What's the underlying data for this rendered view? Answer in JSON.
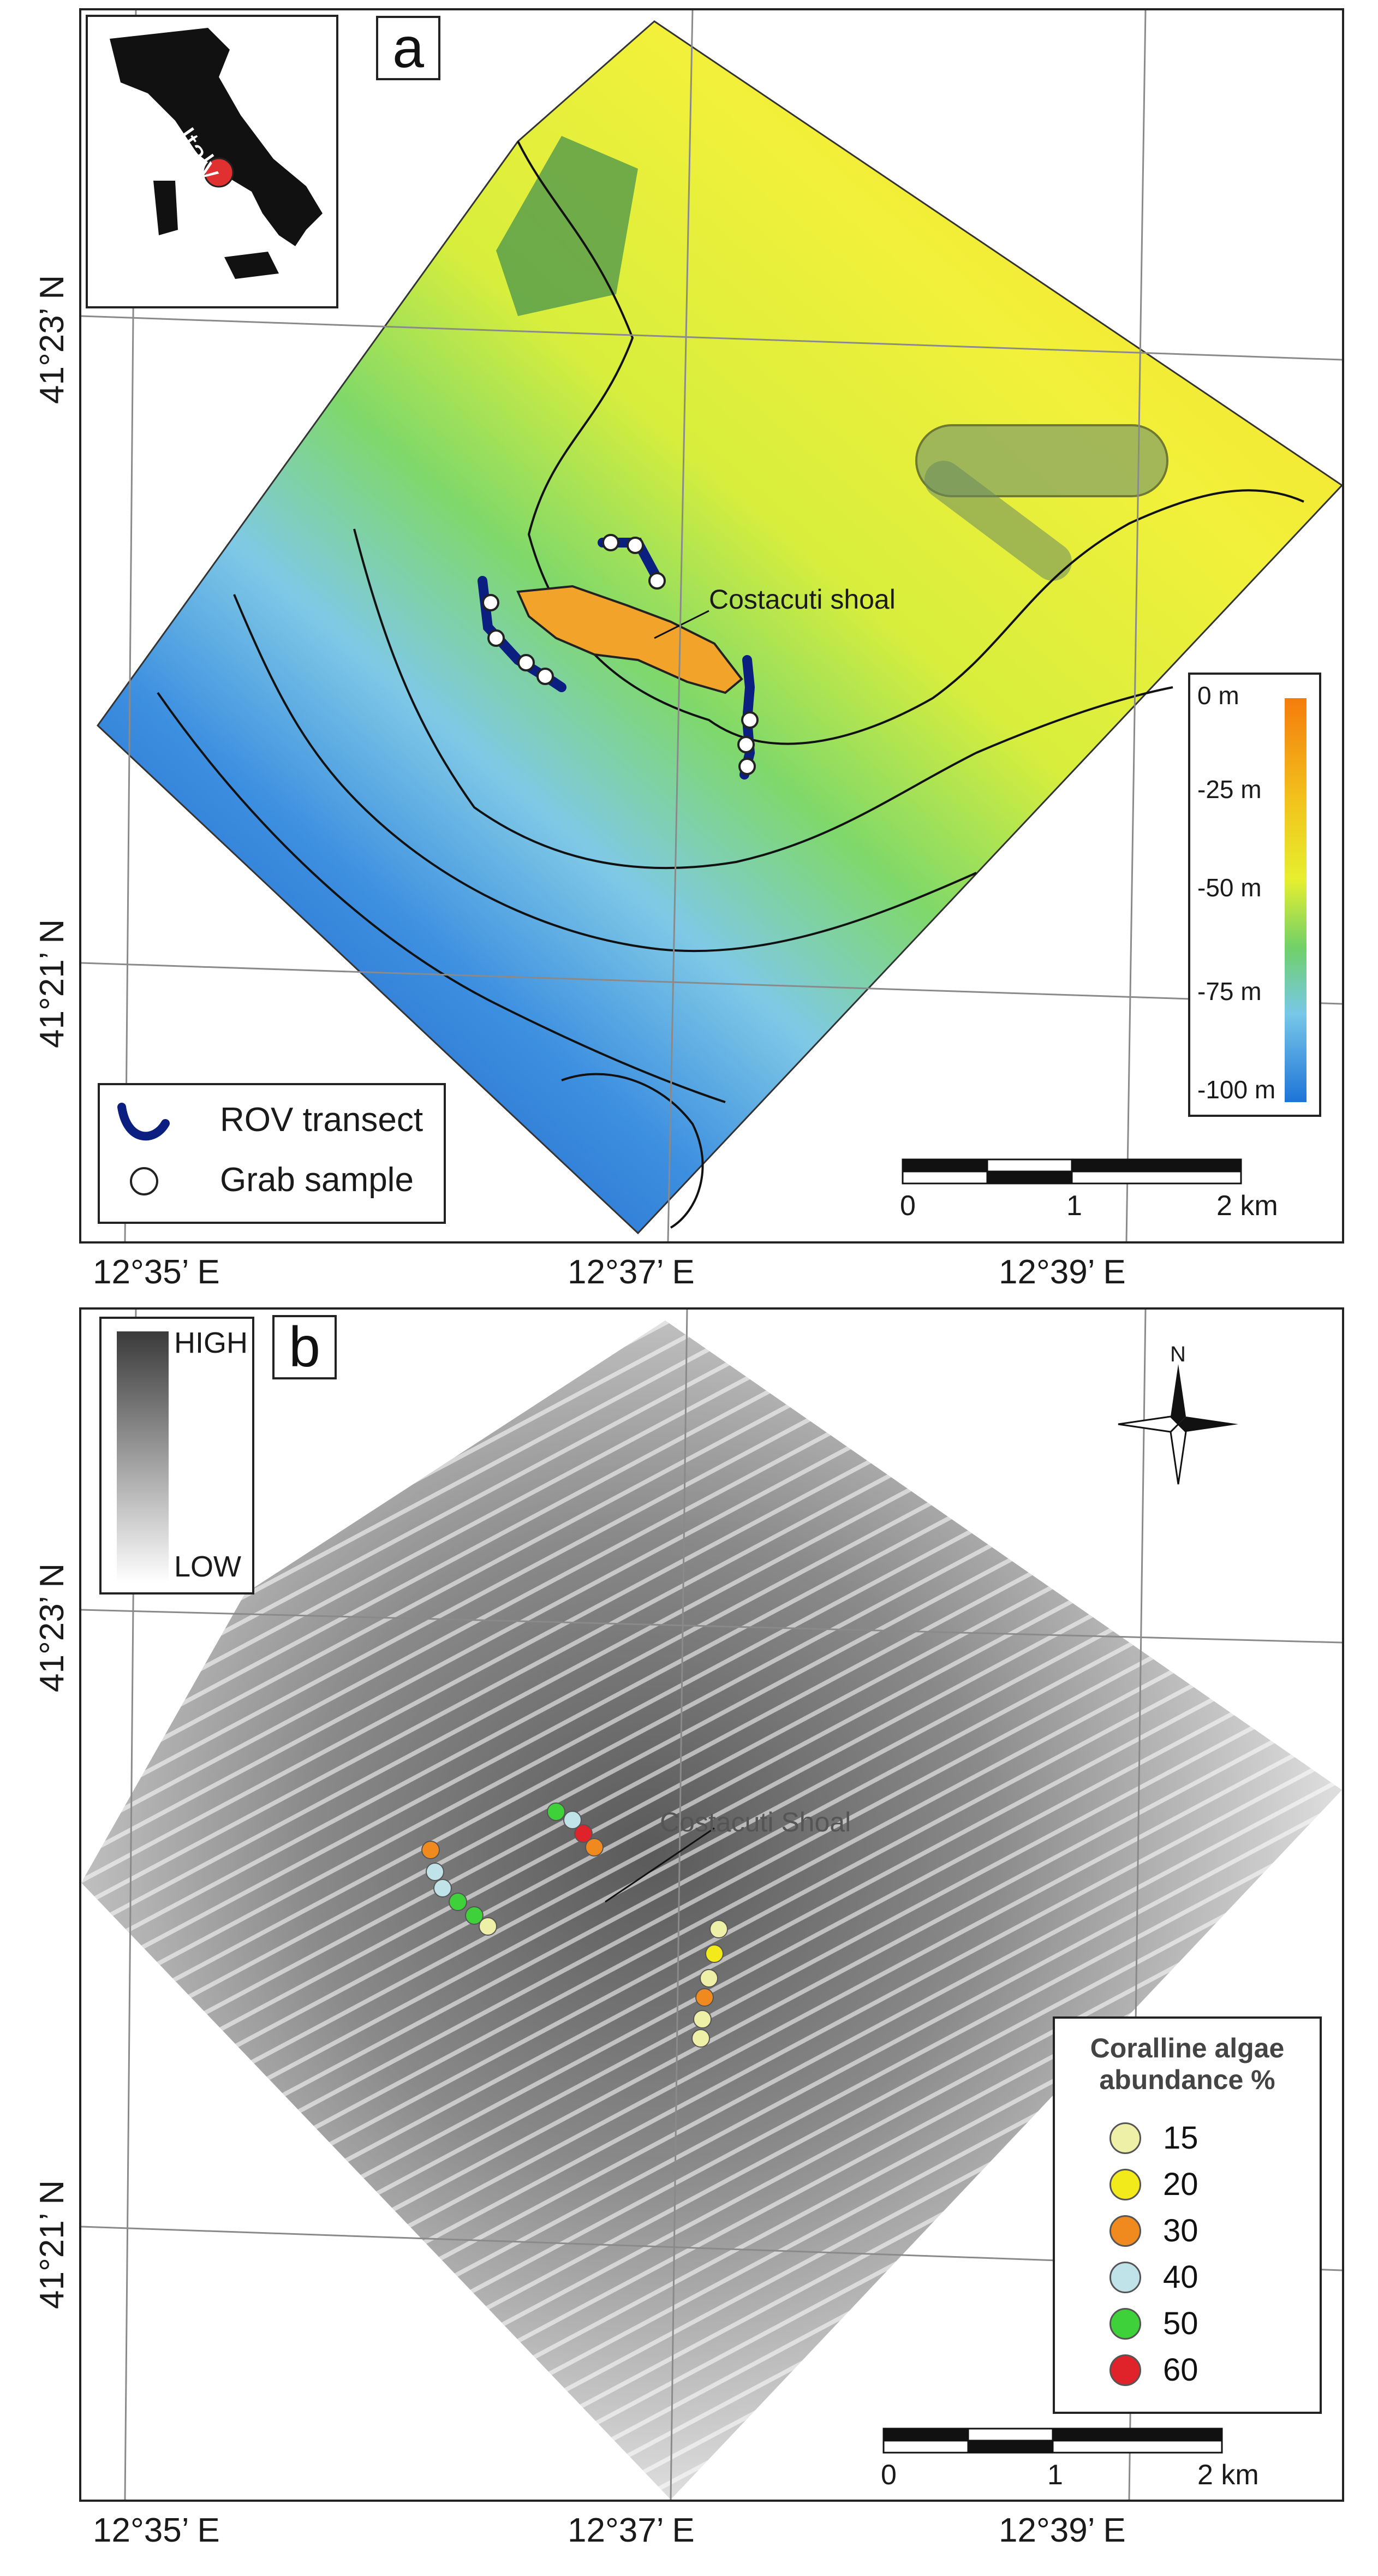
{
  "panel_a": {
    "label": "a",
    "inset_country": "Italy",
    "shoal_label": "Costacuti shoal",
    "legend": {
      "rov": "ROV transect",
      "grab": "Grab sample"
    },
    "depth_scale": {
      "ticks": [
        "0 m",
        "-25 m",
        "-50 m",
        "-75 m",
        "-100 m"
      ],
      "colors": [
        "#f47c0c",
        "#f2c21c",
        "#e6ef2f",
        "#6fd06a",
        "#78c8e8",
        "#1e74d8"
      ]
    },
    "scalebar": {
      "ticks": [
        "0",
        "1",
        "2 km"
      ]
    },
    "lon_labels": [
      "12°35’ E",
      "12°37’ E",
      "12°39’ E"
    ],
    "lat_labels": [
      "41°23’ N",
      "41°21’ N"
    ]
  },
  "panel_b": {
    "label": "b",
    "backscatter": {
      "high": "HIGH",
      "low": "LOW"
    },
    "north": "N",
    "shoal_label": "Costacuti Shoal",
    "legend_title": "Coralline algae abundance %",
    "legend_items": [
      {
        "value": "15",
        "color": "#eef0a8"
      },
      {
        "value": "20",
        "color": "#f3ea1c"
      },
      {
        "value": "30",
        "color": "#f08a1e"
      },
      {
        "value": "40",
        "color": "#bfe3e8"
      },
      {
        "value": "50",
        "color": "#3fd13a"
      },
      {
        "value": "60",
        "color": "#e0232a"
      }
    ],
    "scalebar": {
      "ticks": [
        "0",
        "1",
        "2 km"
      ]
    },
    "lon_labels": [
      "12°35’ E",
      "12°37’ E",
      "12°39’ E"
    ],
    "lat_labels": [
      "41°23’ N",
      "41°21’ N"
    ]
  }
}
